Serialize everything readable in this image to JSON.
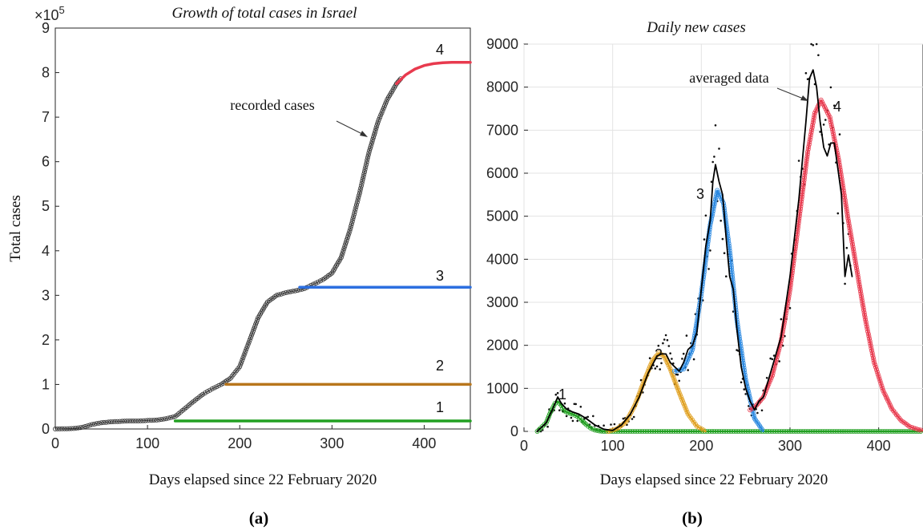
{
  "captions": {
    "left": "(a)",
    "right": "(b)"
  },
  "chart_data": [
    {
      "type": "line",
      "title": "Growth of total cases in Israel",
      "xlabel": "Days elapsed since 22 February 2020",
      "ylabel": "Total cases",
      "y_multiplier_label": "×10",
      "y_multiplier_exponent": "5",
      "xlim": [
        0,
        450
      ],
      "ylim": [
        0,
        9
      ],
      "x_ticks": [
        "0",
        "100",
        "200",
        "300",
        "400"
      ],
      "y_ticks": [
        "0",
        "1",
        "2",
        "3",
        "4",
        "5",
        "6",
        "7",
        "8",
        "9"
      ],
      "grid": false,
      "annotations": [
        "recorded cases"
      ],
      "series": [
        {
          "name": "recorded cases",
          "color": "#333333",
          "x": [
            0,
            20,
            30,
            40,
            50,
            60,
            70,
            80,
            90,
            100,
            110,
            120,
            130,
            140,
            150,
            160,
            170,
            180,
            190,
            200,
            210,
            220,
            230,
            240,
            250,
            260,
            270,
            280,
            290,
            300,
            310,
            320,
            330,
            340,
            350,
            360,
            370,
            376
          ],
          "y": [
            0.0,
            0.01,
            0.04,
            0.1,
            0.14,
            0.16,
            0.17,
            0.18,
            0.18,
            0.19,
            0.2,
            0.23,
            0.28,
            0.45,
            0.62,
            0.78,
            0.9,
            1.0,
            1.14,
            1.4,
            1.95,
            2.5,
            2.85,
            3.0,
            3.06,
            3.1,
            3.15,
            3.25,
            3.35,
            3.5,
            3.85,
            4.5,
            5.3,
            6.2,
            6.9,
            7.4,
            7.75,
            7.9
          ]
        },
        {
          "name": "1",
          "color": "#22a022",
          "x": [
            130,
            450
          ],
          "y": [
            0.18,
            0.18
          ]
        },
        {
          "name": "2",
          "color": "#b8761c",
          "x": [
            185,
            450
          ],
          "y": [
            1.0,
            1.0
          ]
        },
        {
          "name": "3",
          "color": "#2c6fe0",
          "x": [
            265,
            450
          ],
          "y": [
            3.18,
            3.18
          ]
        },
        {
          "name": "4",
          "color": "#e83a4e",
          "x": [
            370,
            380,
            390,
            400,
            410,
            420,
            430,
            440,
            450
          ],
          "y": [
            7.75,
            7.95,
            8.08,
            8.16,
            8.2,
            8.22,
            8.23,
            8.23,
            8.23
          ]
        }
      ]
    },
    {
      "type": "line",
      "title": "Daily new cases",
      "xlabel": "Days elapsed since 22 February 2020",
      "ylabel": "",
      "xlim": [
        0,
        450
      ],
      "ylim": [
        0,
        9000
      ],
      "x_ticks": [
        "0",
        "100",
        "200",
        "300",
        "400"
      ],
      "y_ticks": [
        "0",
        "1000",
        "2000",
        "3000",
        "4000",
        "5000",
        "6000",
        "7000",
        "8000",
        "9000"
      ],
      "grid": true,
      "annotations": [
        "averaged data"
      ],
      "series": [
        {
          "name": "1",
          "color": "#22a022",
          "x": [
            15,
            25,
            30,
            35,
            38,
            42,
            45,
            50,
            55,
            60,
            65,
            70,
            75,
            80,
            85,
            90,
            450
          ],
          "y": [
            0,
            200,
            450,
            650,
            700,
            600,
            480,
            430,
            400,
            350,
            260,
            160,
            80,
            30,
            10,
            0,
            0
          ]
        },
        {
          "name": "2",
          "color": "#e0a020",
          "x": [
            95,
            105,
            115,
            125,
            135,
            145,
            152,
            158,
            165,
            175,
            185,
            195,
            205
          ],
          "y": [
            0,
            60,
            220,
            600,
            1150,
            1650,
            1820,
            1750,
            1450,
            900,
            400,
            120,
            0
          ]
        },
        {
          "name": "3",
          "color": "#2a88e0",
          "x": [
            170,
            180,
            190,
            200,
            210,
            218,
            225,
            232,
            240,
            250,
            260,
            270
          ],
          "y": [
            1400,
            1450,
            1900,
            3200,
            4800,
            5600,
            5300,
            4200,
            2600,
            1200,
            300,
            0
          ]
        },
        {
          "name": "4",
          "color": "#e83a4e",
          "x": [
            255,
            262,
            270,
            280,
            290,
            300,
            310,
            320,
            328,
            335,
            345,
            355,
            365,
            375,
            385,
            395,
            405,
            415,
            425,
            435,
            445,
            450
          ],
          "y": [
            500,
            600,
            800,
            1300,
            2100,
            3300,
            4900,
            6500,
            7400,
            7700,
            7300,
            6300,
            5000,
            3800,
            2600,
            1600,
            950,
            520,
            260,
            110,
            40,
            20
          ]
        },
        {
          "name": "averaged data",
          "color": "#000000",
          "x": [
            15,
            25,
            32,
            38,
            42,
            48,
            55,
            62,
            70,
            80,
            90,
            100,
            110,
            120,
            130,
            140,
            150,
            155,
            160,
            165,
            170,
            175,
            180,
            185,
            190,
            195,
            200,
            205,
            210,
            213,
            216,
            220,
            224,
            228,
            232,
            236,
            240,
            245,
            250,
            255,
            260,
            265,
            270,
            280,
            290,
            300,
            310,
            318,
            322,
            326,
            330,
            334,
            338,
            342,
            346,
            350,
            354,
            358,
            362,
            366,
            370
          ],
          "y": [
            0,
            200,
            500,
            800,
            650,
            520,
            450,
            400,
            300,
            150,
            50,
            20,
            150,
            400,
            800,
            1350,
            1750,
            1800,
            1800,
            1600,
            1500,
            1400,
            1600,
            1900,
            2000,
            2300,
            3300,
            4300,
            4900,
            5800,
            6200,
            5800,
            5500,
            4500,
            3600,
            3300,
            2400,
            1500,
            1000,
            700,
            500,
            700,
            800,
            1500,
            2200,
            3600,
            5400,
            7200,
            8200,
            8400,
            8000,
            7200,
            6600,
            6400,
            6700,
            6700,
            6100,
            5500,
            3600,
            4100,
            3600
          ]
        }
      ]
    }
  ]
}
